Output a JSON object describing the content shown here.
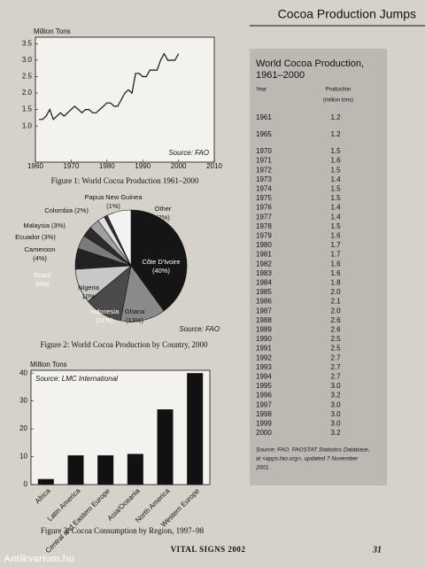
{
  "header": {
    "title": "Cocoa Production Jumps"
  },
  "chart_data": [
    {
      "type": "line",
      "ylabel": "Million  Tons",
      "annotation": "Source: FAO",
      "caption": "Figure 1:  World Cocoa Production 1961–2000",
      "x": [
        1961,
        1962,
        1963,
        1964,
        1965,
        1966,
        1967,
        1968,
        1969,
        1970,
        1971,
        1972,
        1973,
        1974,
        1975,
        1976,
        1977,
        1978,
        1979,
        1980,
        1981,
        1982,
        1983,
        1984,
        1985,
        1986,
        1987,
        1988,
        1989,
        1990,
        1991,
        1992,
        1993,
        1994,
        1995,
        1996,
        1997,
        1998,
        1999,
        2000
      ],
      "values": [
        1.2,
        1.2,
        1.3,
        1.5,
        1.2,
        1.3,
        1.4,
        1.3,
        1.4,
        1.5,
        1.6,
        1.5,
        1.4,
        1.5,
        1.5,
        1.4,
        1.4,
        1.5,
        1.6,
        1.7,
        1.7,
        1.6,
        1.6,
        1.8,
        2.0,
        2.1,
        2.0,
        2.6,
        2.6,
        2.5,
        2.5,
        2.7,
        2.7,
        2.7,
        3.0,
        3.2,
        3.0,
        3.0,
        3.0,
        3.2
      ],
      "color": "#111111",
      "xlim": [
        1960,
        2010
      ],
      "xticks": [
        1960,
        1970,
        1980,
        1990,
        2000,
        2010
      ],
      "ylim": [
        -0.1,
        3.7
      ],
      "yticks": [
        {
          "value": 1,
          "label": "1.0"
        },
        1.5,
        {
          "value": 2,
          "label": "2.0"
        },
        2.5,
        {
          "value": 3,
          "label": "3.0"
        },
        3.5
      ]
    },
    {
      "type": "pie",
      "annotation": "Source: FAO",
      "caption": "Figure 2:  World Cocoa Production by Country, 2000",
      "categories": [
        "Côte D'Ivoire",
        "Ghana",
        "Indonesia",
        "Nigeria",
        "Brazil",
        "Cameroon",
        "Ecuador",
        "Malaysia",
        "Colombia",
        "Papua New Guinea",
        "Other"
      ],
      "values": [
        40,
        13,
        11,
        10,
        6,
        4,
        3,
        3,
        2,
        1,
        7
      ],
      "value_labels": [
        "(40%)",
        "(13%)",
        "(11%)",
        "10%",
        "(6%)",
        "(4%)",
        "(3%)",
        "(3%)",
        "(2%)",
        "(1%)",
        "(7%)"
      ],
      "colors": [
        "#151515",
        "#8a8a8a",
        "#4a4a4a",
        "#c8c8c8",
        "#222222",
        "#7a7a7a",
        "#2c2c2c",
        "#a0a0a0",
        "#e0e0e0",
        "#333333",
        "#f2f2f2"
      ]
    },
    {
      "type": "bar",
      "ylabel": "Million Tons",
      "annotation": "Source: LMC International",
      "caption": "Figure 3:  Cocoa Consumption by Region, 1997–98",
      "categories": [
        "Africa",
        "Latin America",
        "Central and Eastern Europe",
        "Asia/Oceania",
        "North America",
        "Western Europe"
      ],
      "values": [
        2,
        10.5,
        10.5,
        11,
        27,
        40
      ],
      "color": "#111111",
      "ylim": [
        0,
        41
      ],
      "yticks": [
        0,
        10,
        20,
        30,
        40
      ]
    }
  ],
  "table": {
    "title": [
      "World Cocoa Production,",
      "1961–2000"
    ],
    "columns": [
      "Year",
      "Production",
      "(million tons)"
    ],
    "rows": [
      [
        "1961",
        "1.2"
      ],
      [
        "1965",
        "1.2"
      ],
      [
        "1970",
        "1.5"
      ],
      [
        "1971",
        "1.6"
      ],
      [
        "1972",
        "1.5"
      ],
      [
        "1973",
        "1.4"
      ],
      [
        "1974",
        "1.5"
      ],
      [
        "1975",
        "1.5"
      ],
      [
        "1976",
        "1.4"
      ],
      [
        "1977",
        "1.4"
      ],
      [
        "1978",
        "1.5"
      ],
      [
        "1979",
        "1.6"
      ],
      [
        "1980",
        "1.7"
      ],
      [
        "1981",
        "1.7"
      ],
      [
        "1982",
        "1.6"
      ],
      [
        "1983",
        "1.6"
      ],
      [
        "1984",
        "1.8"
      ],
      [
        "1985",
        "2.0"
      ],
      [
        "1986",
        "2.1"
      ],
      [
        "1987",
        "2.0"
      ],
      [
        "1988",
        "2.6"
      ],
      [
        "1989",
        "2.6"
      ],
      [
        "1990",
        "2.5"
      ],
      [
        "1991",
        "2.5"
      ],
      [
        "1992",
        "2.7"
      ],
      [
        "1993",
        "2.7"
      ],
      [
        "1994",
        "2.7"
      ],
      [
        "1995",
        "3.0"
      ],
      [
        "1996",
        "3.2"
      ],
      [
        "1997",
        "3.0"
      ],
      [
        "1998",
        "3.0"
      ],
      [
        "1999",
        "3.0"
      ],
      [
        "2000",
        "3.2"
      ]
    ],
    "source": [
      "Source: FAO, FAOSTAT Statistics Database,",
      "at <apps.fao.org>, updated 7 November",
      "2001."
    ]
  },
  "footer": {
    "running_title": "VITAL SIGNS 2002",
    "page": "31"
  },
  "watermark": "Antikvarium.hu"
}
